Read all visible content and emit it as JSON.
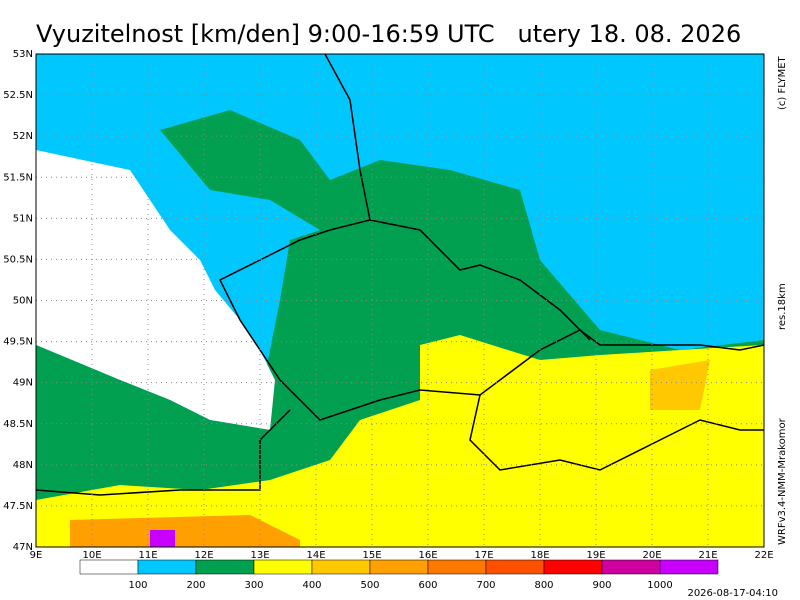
{
  "header": {
    "title": "Vyuzitelnost [km/den] 9:00-16:59 UTC   utery 18. 08. 2026"
  },
  "side_labels": {
    "copyright": "(c) FLYMET",
    "resolution": "res.18km",
    "model": "WRFv3.4-NMM-Mrakomor"
  },
  "timestamp": "2026-08-17-04:10",
  "map": {
    "lat_labels": [
      "53N",
      "52.5N",
      "52N",
      "51.5N",
      "51N",
      "50.5N",
      "50N",
      "49.5N",
      "49N",
      "48.5N",
      "48N",
      "47.5N",
      "47N"
    ],
    "lon_labels": [
      "9E",
      "10E",
      "11E",
      "12E",
      "13E",
      "14E",
      "15E",
      "16E",
      "17E",
      "18E",
      "19E",
      "20E",
      "21E",
      "22E"
    ]
  },
  "legend": {
    "colors": [
      "#ffffff",
      "#00c8ff",
      "#00a050",
      "#ffff00",
      "#ffc800",
      "#ffa000",
      "#ff7800",
      "#ff5000",
      "#ff0000",
      "#d000a0",
      "#c800ff"
    ],
    "labels": [
      "100",
      "200",
      "300",
      "400",
      "500",
      "600",
      "700",
      "800",
      "900",
      "1000"
    ]
  }
}
